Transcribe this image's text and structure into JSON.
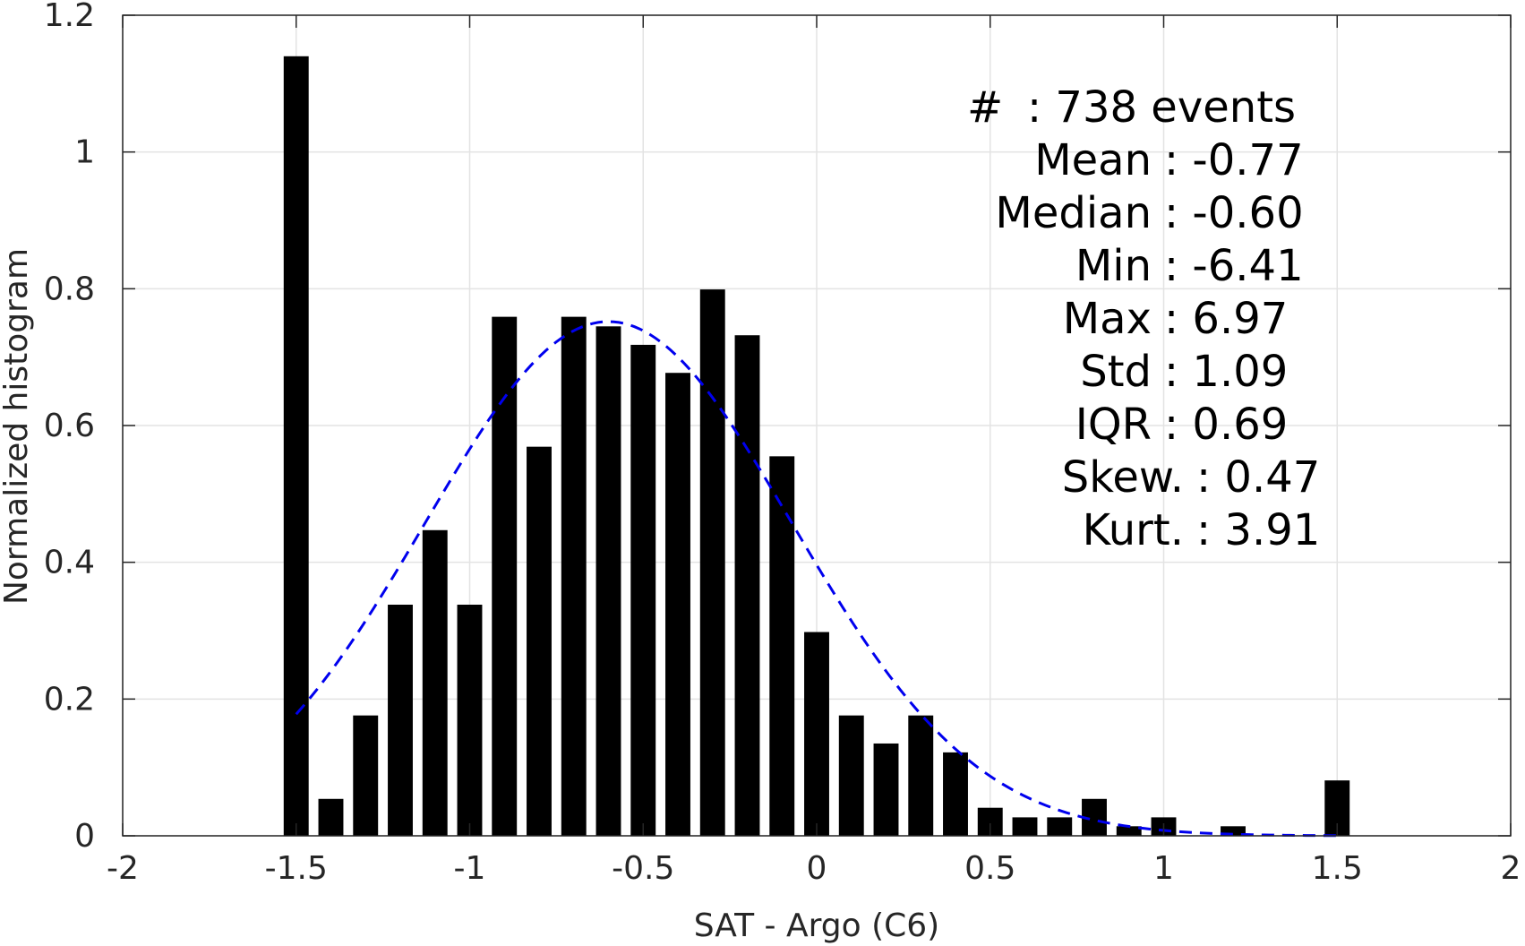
{
  "chart_data": {
    "type": "bar",
    "xlabel": "SAT - Argo (C6)",
    "ylabel": "Normalized histogram",
    "xlim": [
      -2,
      2
    ],
    "ylim": [
      0,
      1.2
    ],
    "grid": true,
    "x_ticks": [
      -2,
      -1.5,
      -1,
      -0.5,
      0,
      0.5,
      1,
      1.5,
      2
    ],
    "x_tick_labels": [
      "-2",
      "-1.5",
      "-1",
      "-0.5",
      "0",
      "0.5",
      "1",
      "1.5",
      "2"
    ],
    "y_ticks": [
      0,
      0.2,
      0.4,
      0.6,
      0.8,
      1,
      1.2
    ],
    "y_tick_labels": [
      "0",
      "0.2",
      "0.4",
      "0.6",
      "0.8",
      "1",
      "1.2"
    ],
    "bin_width": 0.1,
    "bar_color": "#000000",
    "bars": {
      "x": [
        -1.5,
        -1.4,
        -1.3,
        -1.2,
        -1.1,
        -1.0,
        -0.9,
        -0.8,
        -0.7,
        -0.6,
        -0.5,
        -0.4,
        -0.3,
        -0.2,
        -0.1,
        0.0,
        0.1,
        0.2,
        0.3,
        0.4,
        0.5,
        0.6,
        0.7,
        0.8,
        0.9,
        1.0,
        1.1,
        1.2,
        1.3,
        1.4,
        1.5
      ],
      "values": [
        1.14,
        0.054,
        0.176,
        0.338,
        0.447,
        0.338,
        0.759,
        0.569,
        0.759,
        0.745,
        0.718,
        0.677,
        0.799,
        0.732,
        0.555,
        0.298,
        0.176,
        0.135,
        0.176,
        0.122,
        0.041,
        0.027,
        0.027,
        0.054,
        0.014,
        0.027,
        0.0,
        0.014,
        0.0,
        0.0,
        0.081
      ]
    },
    "fit_curve": {
      "name": "Gaussian fit",
      "color": "#0000ee",
      "style": "dashed",
      "mean": -0.6,
      "std": 0.53,
      "peak": 0.752,
      "x_range": [
        -1.5,
        1.5
      ]
    },
    "annotation": [
      {
        "label": "#",
        "value": ": 738 events"
      },
      {
        "label": "Mean",
        "value": ": -0.77"
      },
      {
        "label": "Median",
        "value": ": -0.60"
      },
      {
        "label": "Min",
        "value": ": -6.41"
      },
      {
        "label": "Max",
        "value": ": 6.97"
      },
      {
        "label": "Std",
        "value": ": 1.09"
      },
      {
        "label": "IQR",
        "value": ": 0.69"
      },
      {
        "label": "Skew.",
        "value": ": 0.47"
      },
      {
        "label": "Kurt.",
        "value": ": 3.91"
      }
    ]
  }
}
